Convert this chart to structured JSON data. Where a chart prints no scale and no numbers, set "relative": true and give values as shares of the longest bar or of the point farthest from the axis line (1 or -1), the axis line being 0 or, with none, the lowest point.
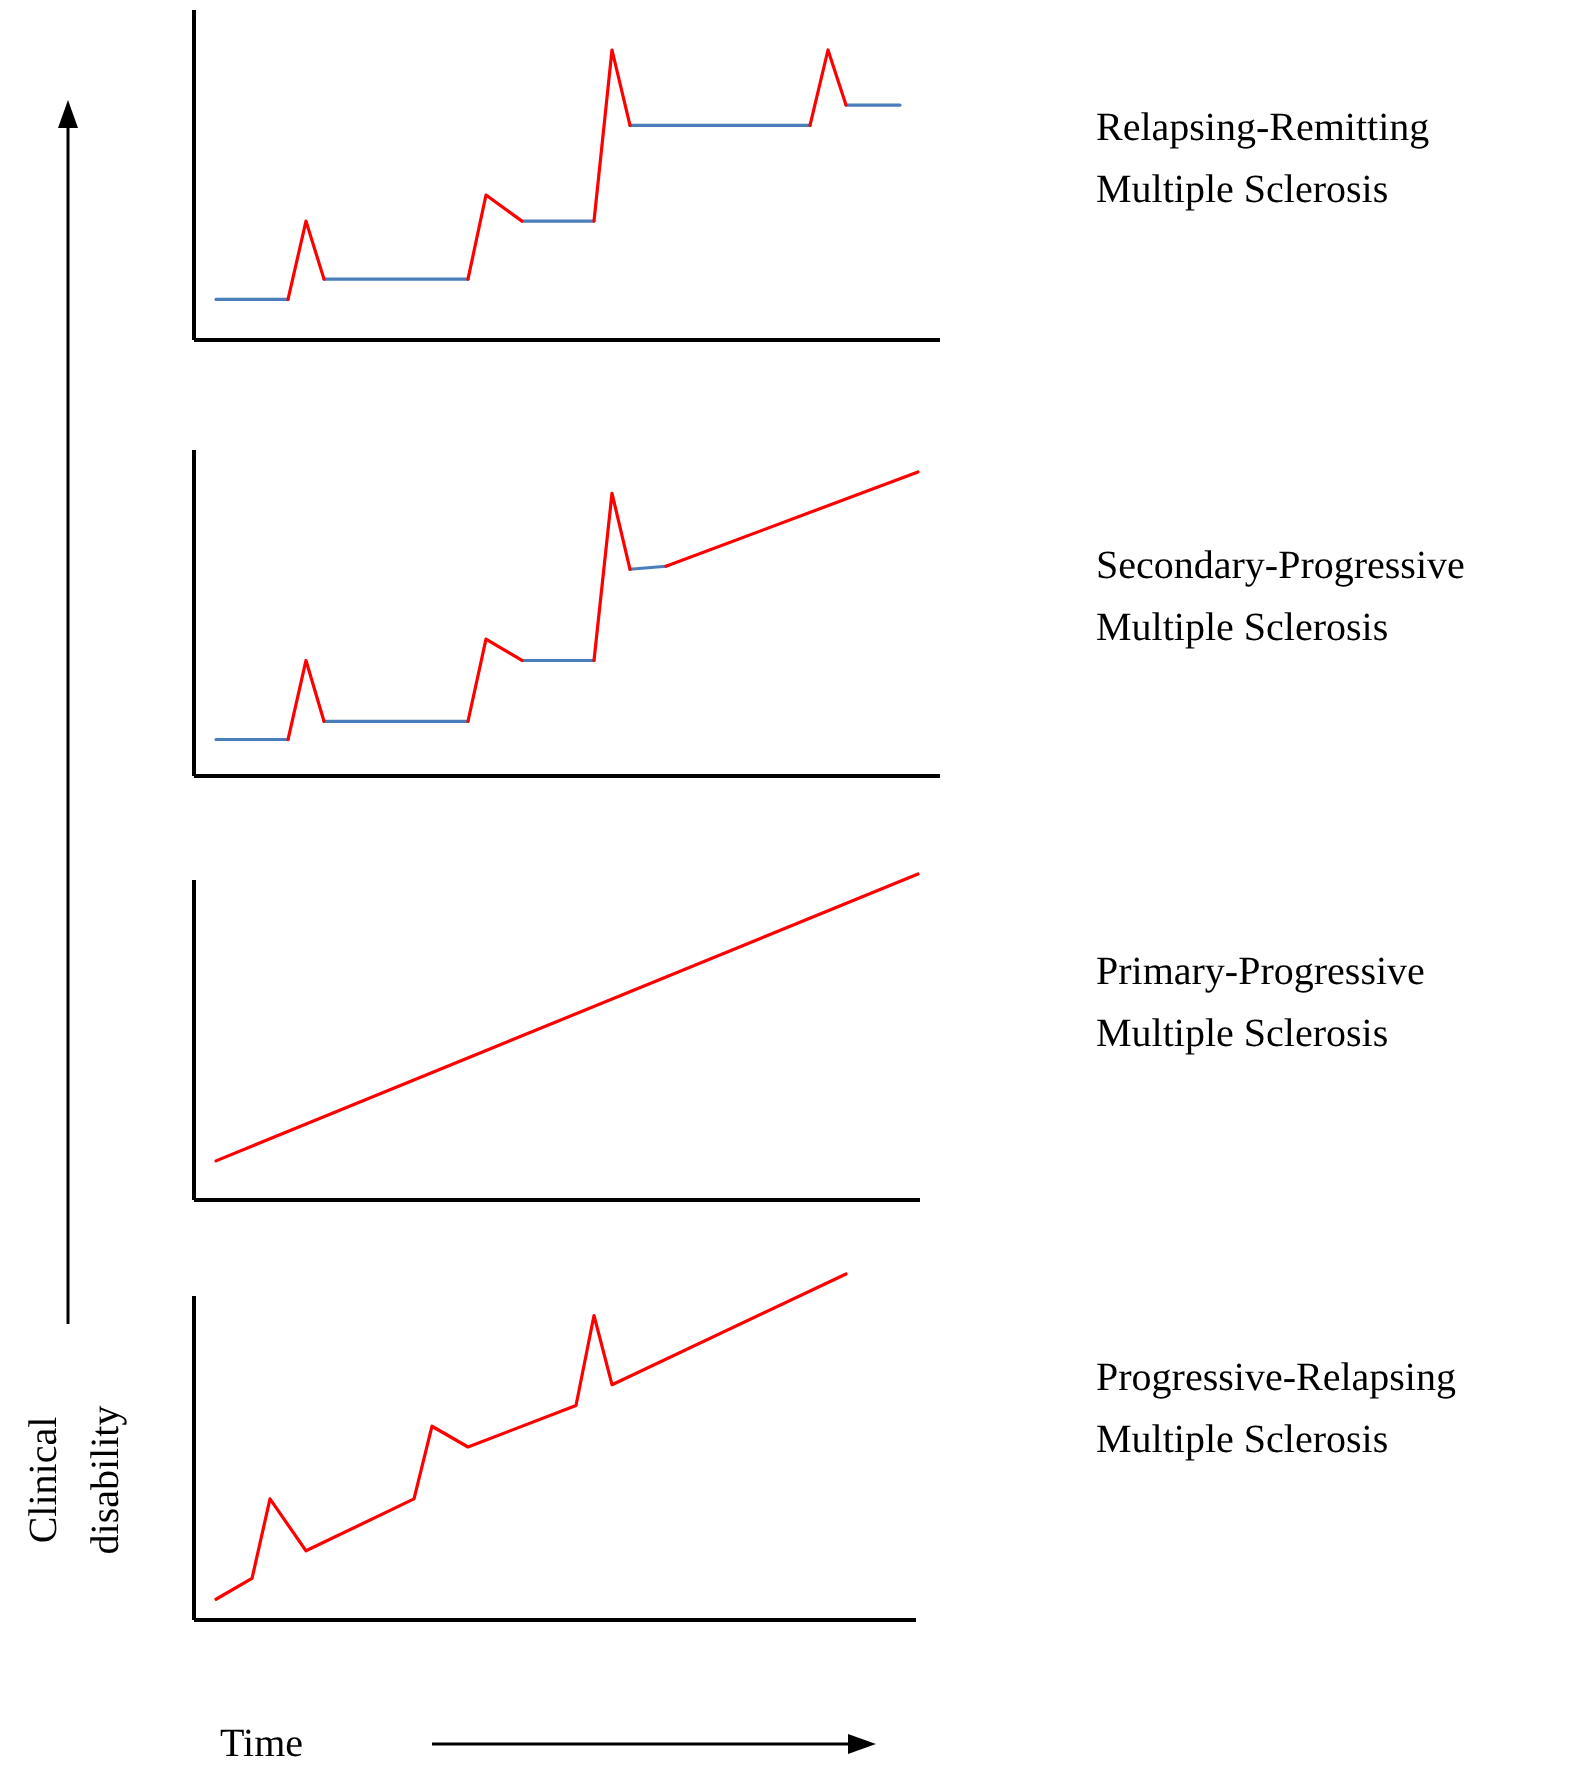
{
  "chart_data": [
    {
      "type": "line",
      "annotations": [
        "Relapsing-Remitting Multiple Sclerosis"
      ],
      "relative": true,
      "categories": [
        null,
        null,
        null,
        null,
        null,
        null,
        null,
        null,
        null,
        null,
        null,
        null,
        null,
        null,
        null,
        null,
        null,
        null,
        null,
        null,
        null,
        null,
        null,
        null,
        null,
        null,
        null,
        null,
        null,
        null,
        null,
        null,
        null,
        null,
        null,
        null,
        null,
        null,
        null,
        null
      ],
      "series": [
        {
          "color": "#4a7ebb",
          "values": [
            0.14,
            null,
            null,
            null,
            0.14,
            null,
            null,
            null,
            null,
            null,
            null,
            null,
            null,
            null,
            null,
            null,
            null,
            null,
            null,
            null,
            null,
            null,
            null,
            null,
            null,
            null,
            null,
            null,
            null,
            null,
            null,
            null,
            null,
            null,
            null,
            null,
            null,
            null,
            null,
            null
          ]
        },
        {
          "color": "#4a7ebb",
          "values": [
            null,
            null,
            null,
            null,
            null,
            null,
            0.21,
            null,
            null,
            null,
            null,
            null,
            null,
            null,
            0.21,
            null,
            null,
            null,
            null,
            null,
            null,
            null,
            null,
            null,
            null,
            null,
            null,
            null,
            null,
            null,
            null,
            null,
            null,
            null,
            null,
            null,
            null,
            null,
            null,
            null
          ]
        },
        {
          "color": "#4a7ebb",
          "values": [
            null,
            null,
            null,
            null,
            null,
            null,
            null,
            null,
            null,
            null,
            null,
            null,
            null,
            null,
            null,
            null,
            null,
            0.41,
            null,
            null,
            null,
            0.41,
            null,
            null,
            null,
            null,
            null,
            null,
            null,
            null,
            null,
            null,
            null,
            null,
            null,
            null,
            null,
            null,
            null,
            null
          ]
        },
        {
          "color": "#4a7ebb",
          "values": [
            null,
            null,
            null,
            null,
            null,
            null,
            null,
            null,
            null,
            null,
            null,
            null,
            null,
            null,
            null,
            null,
            null,
            null,
            null,
            null,
            null,
            null,
            null,
            0.74,
            null,
            null,
            null,
            null,
            null,
            null,
            null,
            null,
            null,
            0.74,
            null,
            null,
            null,
            null,
            null,
            null
          ]
        },
        {
          "color": "#4a7ebb",
          "values": [
            null,
            null,
            null,
            null,
            null,
            null,
            null,
            null,
            null,
            null,
            null,
            null,
            null,
            null,
            null,
            null,
            null,
            null,
            null,
            null,
            null,
            null,
            null,
            null,
            null,
            null,
            null,
            null,
            null,
            null,
            null,
            null,
            null,
            null,
            null,
            0.81,
            null,
            null,
            0.81,
            null
          ]
        },
        {
          "color": "#ff0000",
          "values": [
            null,
            null,
            null,
            null,
            0.14,
            0.41,
            0.21,
            null,
            null,
            null,
            null,
            null,
            null,
            null,
            null,
            null,
            null,
            null,
            null,
            null,
            null,
            null,
            null,
            null,
            null,
            null,
            null,
            null,
            null,
            null,
            null,
            null,
            null,
            null,
            null,
            null,
            null,
            null,
            null,
            null
          ]
        },
        {
          "color": "#ff0000",
          "values": [
            null,
            null,
            null,
            null,
            null,
            null,
            null,
            null,
            null,
            null,
            null,
            null,
            null,
            null,
            0.21,
            0.5,
            null,
            0.41,
            null,
            null,
            null,
            null,
            null,
            null,
            null,
            null,
            null,
            null,
            null,
            null,
            null,
            null,
            null,
            null,
            null,
            null,
            null,
            null,
            null,
            null
          ]
        },
        {
          "color": "#ff0000",
          "values": [
            null,
            null,
            null,
            null,
            null,
            null,
            null,
            null,
            null,
            null,
            null,
            null,
            null,
            null,
            null,
            null,
            null,
            null,
            null,
            null,
            null,
            0.41,
            1,
            0.74,
            null,
            null,
            null,
            null,
            null,
            null,
            null,
            null,
            null,
            null,
            null,
            null,
            null,
            null,
            null,
            null
          ]
        },
        {
          "color": "#ff0000",
          "values": [
            null,
            null,
            null,
            null,
            null,
            null,
            null,
            null,
            null,
            null,
            null,
            null,
            null,
            null,
            null,
            null,
            null,
            null,
            null,
            null,
            null,
            null,
            null,
            null,
            null,
            null,
            null,
            null,
            null,
            null,
            null,
            null,
            null,
            0.74,
            1,
            0.81,
            null,
            null,
            null,
            null
          ]
        }
      ]
    },
    {
      "type": "line",
      "annotations": [
        "Secondary-Progressive Multiple Sclerosis"
      ],
      "relative": true,
      "categories": [
        null,
        null,
        null,
        null,
        null,
        null,
        null,
        null,
        null,
        null,
        null,
        null,
        null,
        null,
        null,
        null,
        null,
        null,
        null,
        null,
        null,
        null,
        null,
        null,
        null,
        null,
        null,
        null,
        null,
        null,
        null,
        null,
        null,
        null,
        null,
        null,
        null,
        null,
        null,
        null
      ],
      "series": [
        {
          "color": "#4a7ebb",
          "values": [
            0.12,
            null,
            null,
            null,
            0.12,
            null,
            null,
            null,
            null,
            null,
            null,
            null,
            null,
            null,
            null,
            null,
            null,
            null,
            null,
            null,
            null,
            null,
            null,
            null,
            null,
            null,
            null,
            null,
            null,
            null,
            null,
            null,
            null,
            null,
            null,
            null,
            null,
            null,
            null,
            null
          ]
        },
        {
          "color": "#4a7ebb",
          "values": [
            null,
            null,
            null,
            null,
            null,
            null,
            0.18,
            null,
            null,
            null,
            null,
            null,
            null,
            null,
            0.18,
            null,
            null,
            null,
            null,
            null,
            null,
            null,
            null,
            null,
            null,
            null,
            null,
            null,
            null,
            null,
            null,
            null,
            null,
            null,
            null,
            null,
            null,
            null,
            null,
            null
          ]
        },
        {
          "color": "#4a7ebb",
          "values": [
            null,
            null,
            null,
            null,
            null,
            null,
            null,
            null,
            null,
            null,
            null,
            null,
            null,
            null,
            null,
            null,
            null,
            0.38,
            null,
            null,
            null,
            0.38,
            null,
            null,
            null,
            null,
            null,
            null,
            null,
            null,
            null,
            null,
            null,
            null,
            null,
            null,
            null,
            null,
            null,
            null
          ]
        },
        {
          "color": "#4a7ebb",
          "values": [
            null,
            null,
            null,
            null,
            null,
            null,
            null,
            null,
            null,
            null,
            null,
            null,
            null,
            null,
            null,
            null,
            null,
            null,
            null,
            null,
            null,
            null,
            null,
            0.68,
            null,
            0.69,
            null,
            null,
            null,
            null,
            null,
            null,
            null,
            null,
            null,
            null,
            null,
            null,
            null,
            null
          ]
        },
        {
          "color": "#ff0000",
          "values": [
            null,
            null,
            null,
            null,
            0.12,
            0.38,
            0.18,
            null,
            null,
            null,
            null,
            null,
            null,
            null,
            null,
            null,
            null,
            null,
            null,
            null,
            null,
            null,
            null,
            null,
            null,
            null,
            null,
            null,
            null,
            null,
            null,
            null,
            null,
            null,
            null,
            null,
            null,
            null,
            null,
            null
          ]
        },
        {
          "color": "#ff0000",
          "values": [
            null,
            null,
            null,
            null,
            null,
            null,
            null,
            null,
            null,
            null,
            null,
            null,
            null,
            null,
            0.18,
            0.45,
            null,
            0.38,
            null,
            null,
            null,
            null,
            null,
            null,
            null,
            null,
            null,
            null,
            null,
            null,
            null,
            null,
            null,
            null,
            null,
            null,
            null,
            null,
            null,
            null
          ]
        },
        {
          "color": "#ff0000",
          "values": [
            null,
            null,
            null,
            null,
            null,
            null,
            null,
            null,
            null,
            null,
            null,
            null,
            null,
            null,
            null,
            null,
            null,
            null,
            null,
            null,
            null,
            0.38,
            0.93,
            0.68,
            null,
            null,
            null,
            null,
            null,
            null,
            null,
            null,
            null,
            null,
            null,
            null,
            null,
            null,
            null,
            null
          ]
        },
        {
          "color": "#ff0000",
          "values": [
            null,
            null,
            null,
            null,
            null,
            null,
            null,
            null,
            null,
            null,
            null,
            null,
            null,
            null,
            null,
            null,
            null,
            null,
            null,
            null,
            null,
            null,
            null,
            null,
            null,
            0.69,
            null,
            null,
            null,
            null,
            null,
            null,
            null,
            null,
            null,
            null,
            null,
            null,
            null,
            1
          ]
        }
      ]
    },
    {
      "type": "line",
      "annotations": [
        "Primary-Progressive Multiple Sclerosis"
      ],
      "relative": true,
      "categories": [
        null,
        null,
        null,
        null,
        null,
        null,
        null,
        null,
        null,
        null,
        null,
        null,
        null,
        null,
        null,
        null,
        null,
        null,
        null,
        null,
        null,
        null,
        null,
        null,
        null,
        null,
        null,
        null,
        null,
        null,
        null,
        null,
        null,
        null,
        null,
        null,
        null,
        null,
        null,
        null
      ],
      "series": [
        {
          "color": "#ff0000",
          "values": [
            0.12,
            null,
            null,
            null,
            null,
            null,
            null,
            null,
            null,
            null,
            null,
            null,
            null,
            null,
            null,
            null,
            null,
            null,
            null,
            null,
            null,
            null,
            null,
            null,
            null,
            null,
            null,
            null,
            null,
            null,
            null,
            null,
            null,
            null,
            null,
            null,
            null,
            null,
            null,
            1
          ]
        }
      ]
    },
    {
      "type": "line",
      "annotations": [
        "Progressive-Relapsing Multiple Sclerosis"
      ],
      "xlabel": "Time",
      "ylabel": "Clinical disability",
      "relative": true,
      "categories": [
        null,
        null,
        null,
        null,
        null,
        null,
        null,
        null,
        null,
        null,
        null,
        null,
        null,
        null,
        null,
        null,
        null,
        null,
        null,
        null,
        null,
        null,
        null,
        null,
        null,
        null,
        null,
        null,
        null,
        null,
        null,
        null,
        null,
        null,
        null,
        null,
        null,
        null,
        null,
        null
      ],
      "series": [
        {
          "color": "#ff0000",
          "values": [
            0.06,
            null,
            0.12,
            0.35,
            null,
            0.2,
            null,
            null,
            null,
            null,
            null,
            0.35,
            0.56,
            null,
            0.5,
            null,
            null,
            null,
            null,
            null,
            0.62,
            0.88,
            0.68,
            null,
            null,
            null,
            null,
            null,
            null,
            null,
            null,
            null,
            null,
            null,
            null,
            1,
            null,
            null,
            null,
            null
          ]
        }
      ]
    }
  ]
}
